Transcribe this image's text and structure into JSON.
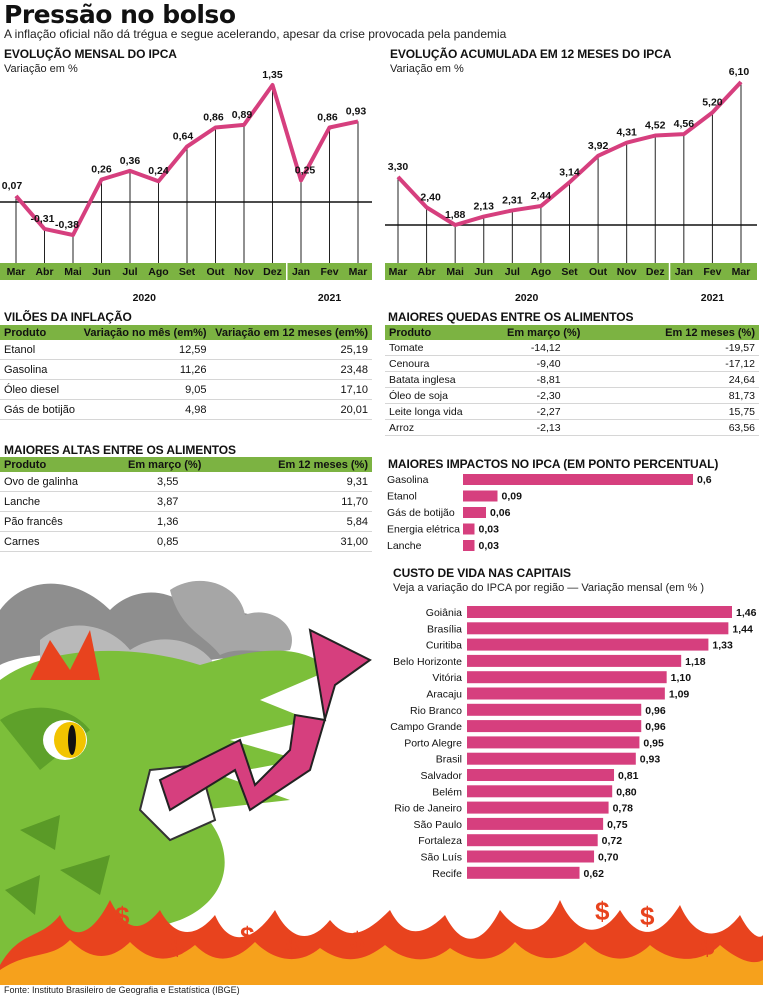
{
  "header": {
    "title": "Pressão no bolso",
    "subtitle": "A inflação oficial não dá trégua e segue acelerando, apesar da crise provocada pela pandemia"
  },
  "chart_data": [
    {
      "type": "line",
      "title": "EVOLUÇÃO MENSAL DO IPCA",
      "ylabel": "Variação em %",
      "categories": [
        "Mar",
        "Abr",
        "Mai",
        "Jun",
        "Jul",
        "Ago",
        "Set",
        "Out",
        "Nov",
        "Dez",
        "Jan",
        "Fev",
        "Mar"
      ],
      "values": [
        0.07,
        -0.31,
        -0.38,
        0.26,
        0.36,
        0.24,
        0.64,
        0.86,
        0.89,
        1.35,
        0.25,
        0.86,
        0.93
      ],
      "labels": [
        "0,07",
        "-0,31",
        "-0,38",
        "0,26",
        "0,36",
        "0,24",
        "0,64",
        "0,86",
        "0,89",
        "1,35",
        "0,25",
        "0,86",
        "0,93"
      ],
      "years": [
        "2020",
        "2021"
      ],
      "color": "#d63f7e"
    },
    {
      "type": "line",
      "title": "EVOLUÇÃO ACUMULADA EM 12 MESES DO IPCA",
      "ylabel": "Variação em %",
      "categories": [
        "Mar",
        "Abr",
        "Mai",
        "Jun",
        "Jul",
        "Ago",
        "Set",
        "Out",
        "Nov",
        "Dez",
        "Jan",
        "Fev",
        "Mar"
      ],
      "values": [
        3.3,
        2.4,
        1.88,
        2.13,
        2.31,
        2.44,
        3.14,
        3.92,
        4.31,
        4.52,
        4.56,
        5.2,
        6.1
      ],
      "labels": [
        "3,30",
        "2,40",
        "1,88",
        "2,13",
        "2,31",
        "2,44",
        "3,14",
        "3,92",
        "4,31",
        "4,52",
        "4,56",
        "5,20",
        "6,10"
      ],
      "years": [
        "2020",
        "2021"
      ],
      "color": "#d63f7e"
    },
    {
      "type": "bar",
      "title": "MAIORES IMPACTOS NO IPCA (EM PONTO PERCENTUAL)",
      "categories": [
        "Gasolina",
        "Etanol",
        "Gás de botijão",
        "Energia elétrica",
        "Lanche"
      ],
      "values": [
        0.6,
        0.09,
        0.06,
        0.03,
        0.03
      ],
      "labels": [
        "0,6",
        "0,09",
        "0,06",
        "0,03",
        "0,03"
      ],
      "color": "#d63f7e"
    },
    {
      "type": "bar",
      "title": "CUSTO DE VIDA NAS CAPITAIS",
      "subtitle": "Veja a variação do IPCA por região — Variação mensal  (em % )",
      "categories": [
        "Goiânia",
        "Brasília",
        "Curitiba",
        "Belo Horizonte",
        "Vitória",
        "Aracaju",
        "Rio Branco",
        "Campo Grande",
        "Porto Alegre",
        "Brasil",
        "Salvador",
        "Belém",
        "Rio de Janeiro",
        "São Paulo",
        "Fortaleza",
        "São Luís",
        "Recife"
      ],
      "values": [
        1.46,
        1.44,
        1.33,
        1.18,
        1.1,
        1.09,
        0.96,
        0.96,
        0.95,
        0.93,
        0.81,
        0.8,
        0.78,
        0.75,
        0.72,
        0.7,
        0.62
      ],
      "labels": [
        "1,46",
        "1,44",
        "1,33",
        "1,18",
        "1,10",
        "1,09",
        "0,96",
        "0,96",
        "0,95",
        "0,93",
        "0,81",
        "0,80",
        "0,78",
        "0,75",
        "0,72",
        "0,70",
        "0,62"
      ],
      "color": "#d63f7e"
    },
    {
      "type": "table",
      "title": "VILÕES DA INFLAÇÃO",
      "columns": [
        "Produto",
        "Variação no mês (em%)",
        "Variação em 12 meses (em%)"
      ],
      "rows": [
        [
          "Etanol",
          "12,59",
          "25,19"
        ],
        [
          "Gasolina",
          "11,26",
          "23,48"
        ],
        [
          "Óleo diesel",
          "9,05",
          "17,10"
        ],
        [
          "Gás de botijão",
          "4,98",
          "20,01"
        ]
      ]
    },
    {
      "type": "table",
      "title": "MAIORES ALTAS ENTRE OS ALIMENTOS",
      "columns": [
        "Produto",
        "Em março (%)",
        "Em 12 meses  (%)"
      ],
      "rows": [
        [
          "Ovo de galinha",
          "3,55",
          "9,31"
        ],
        [
          "Lanche",
          "3,87",
          "11,70"
        ],
        [
          "Pão francês",
          "1,36",
          "5,84"
        ],
        [
          "Carnes",
          "0,85",
          "31,00"
        ]
      ]
    },
    {
      "type": "table",
      "title": "MAIORES QUEDAS ENTRE OS ALIMENTOS",
      "columns": [
        "Produto",
        "Em março (%)",
        "Em 12 meses (%)"
      ],
      "rows": [
        [
          "Tomate",
          "-14,12",
          "-19,57"
        ],
        [
          "Cenoura",
          "-9,40",
          "-17,12"
        ],
        [
          "Batata inglesa",
          "-8,81",
          "24,64"
        ],
        [
          "Óleo de soja",
          "-2,30",
          "81,73"
        ],
        [
          "Leite longa vida",
          "-2,27",
          "15,75"
        ],
        [
          "Arroz",
          "-2,13",
          "63,56"
        ]
      ]
    }
  ],
  "footer": {
    "source": "Fonte: Instituto Brasileiro de Geografia e Estatística (IBGE)"
  },
  "colors": {
    "accent": "#d63f7e",
    "table_header": "#7cb342",
    "dragon": "#7cbf3a",
    "fire": "#e8431e"
  }
}
